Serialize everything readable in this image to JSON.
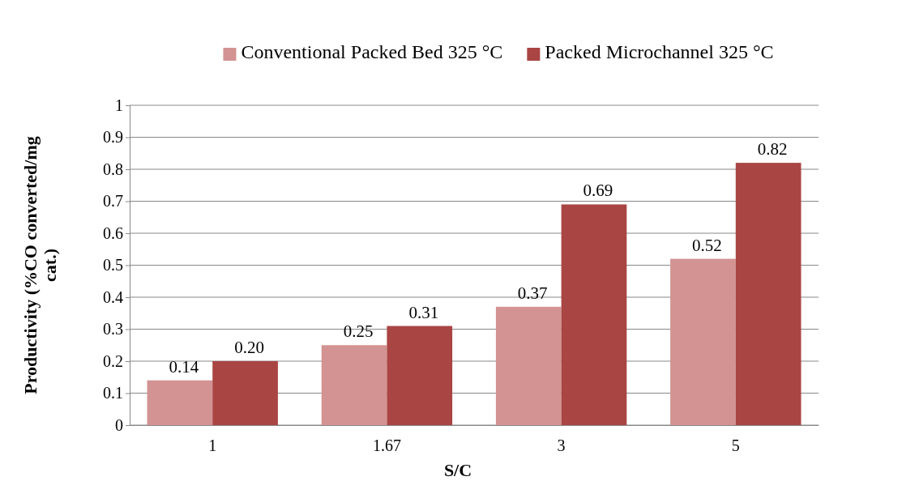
{
  "chart_data": {
    "type": "bar",
    "xlabel": "S/C",
    "ylabel": "Productivity (%CO converted/mg cat.)",
    "categories": [
      "1",
      "1.67",
      "3",
      "5"
    ],
    "series": [
      {
        "name": "Conventional Packed Bed 325 °C",
        "color": "#d39393",
        "values": [
          0.14,
          0.25,
          0.37,
          0.52
        ],
        "value_labels": [
          "0.14",
          "0.25",
          "0.37",
          "0.52"
        ]
      },
      {
        "name": "Packed Microchannel 325 °C",
        "color": "#a94543",
        "values": [
          0.2,
          0.31,
          0.69,
          0.82
        ],
        "value_labels": [
          "0.20",
          "0.31",
          "0.69",
          "0.82"
        ]
      }
    ],
    "ylim": [
      0,
      1
    ],
    "yticks": [
      0,
      0.1,
      0.2,
      0.3,
      0.4,
      0.5,
      0.6,
      0.7,
      0.8,
      0.9,
      1
    ],
    "grid": "y",
    "legend": "top"
  }
}
